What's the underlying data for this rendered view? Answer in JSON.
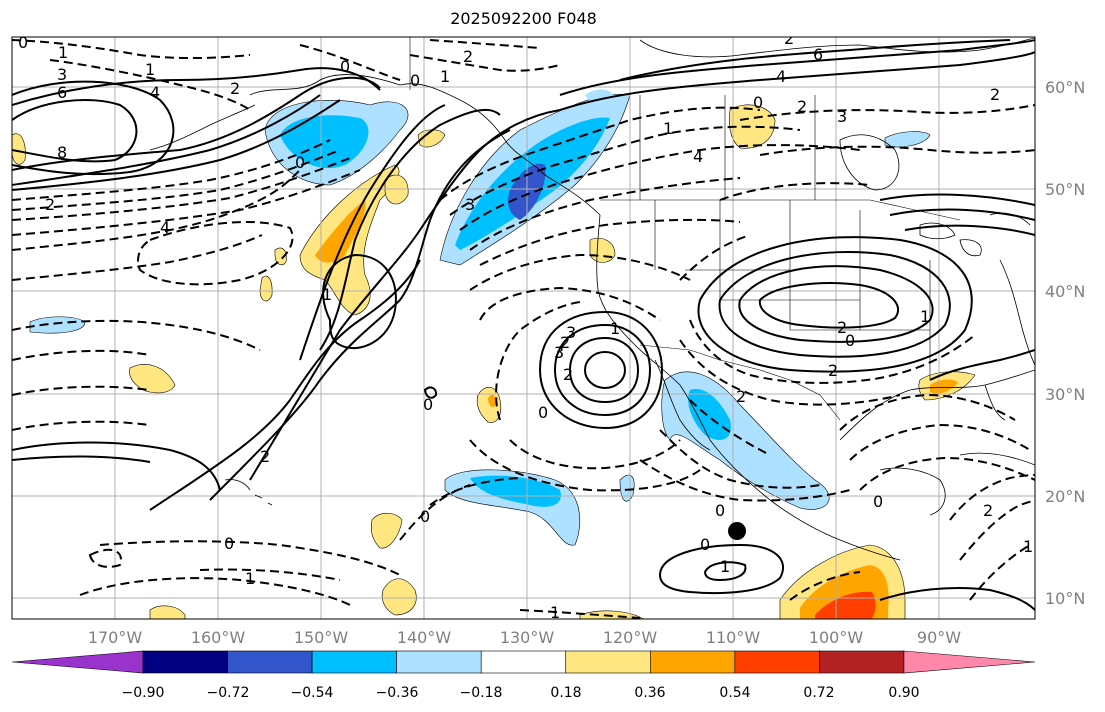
{
  "title": "2025092200 F048",
  "lon_ticks": [
    "170°W",
    "160°W",
    "150°W",
    "140°W",
    "130°W",
    "120°W",
    "110°W",
    "100°W",
    "90°W"
  ],
  "lat_ticks": [
    "60°N",
    "50°N",
    "40°N",
    "30°N",
    "20°N",
    "10°N"
  ],
  "colorbar": {
    "ticks": [
      "−0.90",
      "−0.72",
      "−0.54",
      "−0.36",
      "−0.18",
      "0.18",
      "0.36",
      "0.54",
      "0.72",
      "0.90"
    ],
    "colors": [
      "#9933cc",
      "#000080",
      "#3355cc",
      "#00bfff",
      "#aee0ff",
      "#ffffff",
      "#ffe680",
      "#ffa500",
      "#ff3f00",
      "#b22222",
      "#ff88aa"
    ]
  },
  "contour_labels": [
    "0",
    "1",
    "3",
    "6",
    "8",
    "2",
    "4",
    "0",
    "2",
    "0",
    "1",
    "2",
    "3",
    "4",
    "1",
    "0",
    "6",
    "4",
    "2",
    "3",
    "1",
    "0",
    "2",
    "4",
    "2",
    "0",
    "1",
    "2",
    "3",
    "3",
    "2",
    "1",
    "2",
    "0",
    "0",
    "1",
    "2",
    "0",
    "0",
    "2",
    "0",
    "0",
    "1",
    "1",
    "0",
    "2",
    "1",
    "2",
    "1"
  ],
  "marker": "black-dot",
  "colors": {
    "fill_blue_light": "#aee0ff",
    "fill_blue": "#00bfff",
    "fill_blue_dark": "#3355cc",
    "fill_yellow": "#ffe680",
    "fill_orange": "#ffa500",
    "fill_red": "#ff3f00",
    "grid": "#b0b0b0",
    "coast": "#000000"
  }
}
